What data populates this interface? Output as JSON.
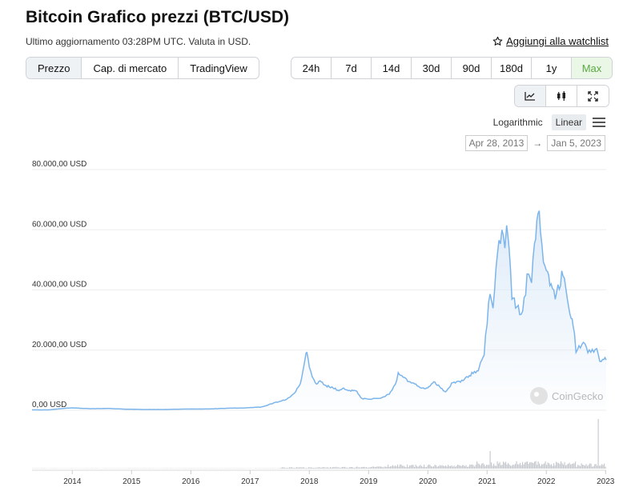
{
  "header": {
    "title": "Bitcoin Grafico prezzi (BTC/USD)",
    "subtitle": "Ultimo aggiornamento 03:28PM UTC. Valuta in USD.",
    "watchlist_label": "Aggiungi alla watchlist"
  },
  "metric_tabs": [
    {
      "label": "Prezzo",
      "active": true
    },
    {
      "label": "Cap. di mercato",
      "active": false
    },
    {
      "label": "TradingView",
      "active": false
    }
  ],
  "range_tabs": [
    {
      "label": "24h"
    },
    {
      "label": "7d"
    },
    {
      "label": "14d"
    },
    {
      "label": "30d"
    },
    {
      "label": "90d"
    },
    {
      "label": "180d"
    },
    {
      "label": "1y"
    },
    {
      "label": "Max",
      "active": true
    }
  ],
  "chart_type_buttons": [
    "line-chart-icon",
    "candlestick-icon",
    "fullscreen-icon"
  ],
  "scale": {
    "logarithmic": "Logarithmic",
    "linear": "Linear",
    "selected": "Linear"
  },
  "date_range": {
    "from": "Apr 28, 2013",
    "arrow": "→",
    "to": "Jan 5, 2023"
  },
  "watermark": "CoinGecko",
  "colors": {
    "line": "#7cb5ec",
    "fill_top": "#dbe9f8",
    "volume": "#c8cbd0",
    "active_green": "#5aa843"
  },
  "chart_data": {
    "type": "area",
    "title": "",
    "xlabel": "",
    "ylabel": "",
    "ylim": [
      0,
      80000
    ],
    "y_ticks": [
      "80.000,00 USD",
      "60.000,00 USD",
      "40.000,00 USD",
      "20.000,00 USD",
      "0,00 USD"
    ],
    "y_tick_values": [
      80000,
      60000,
      40000,
      20000,
      0
    ],
    "x_ticks": [
      "2014",
      "2015",
      "2016",
      "2017",
      "2018",
      "2019",
      "2020",
      "2021",
      "2022",
      "2023"
    ],
    "xlim": [
      2013.32,
      2023.01
    ],
    "grid": true,
    "series": [
      {
        "x": [
          2013.32,
          2013.6,
          2013.9,
          2014.0,
          2014.3,
          2014.6,
          2014.9,
          2015.2,
          2015.6,
          2015.9,
          2016.3,
          2016.6,
          2016.9,
          2017.2,
          2017.4,
          2017.6,
          2017.75,
          2017.85,
          2017.93,
          2017.96,
          2018.0,
          2018.05,
          2018.1,
          2018.2,
          2018.3,
          2018.4,
          2018.5,
          2018.6,
          2018.7,
          2018.8,
          2018.87,
          2018.95,
          2019.0,
          2019.2,
          2019.35,
          2019.45,
          2019.5,
          2019.6,
          2019.7,
          2019.8,
          2019.9,
          2020.0,
          2020.1,
          2020.2,
          2020.3,
          2020.4,
          2020.55,
          2020.7,
          2020.85,
          2020.95,
          2021.0,
          2021.05,
          2021.1,
          2021.15,
          2021.2,
          2021.25,
          2021.3,
          2021.33,
          2021.37,
          2021.42,
          2021.48,
          2021.55,
          2021.6,
          2021.65,
          2021.7,
          2021.75,
          2021.8,
          2021.86,
          2021.9,
          2021.95,
          2022.0,
          2022.08,
          2022.15,
          2022.22,
          2022.28,
          2022.33,
          2022.38,
          2022.42,
          2022.45,
          2022.5,
          2022.55,
          2022.6,
          2022.65,
          2022.7,
          2022.75,
          2022.8,
          2022.85,
          2022.9,
          2022.95,
          2023.01
        ],
        "y": [
          140,
          110,
          700,
          800,
          500,
          600,
          350,
          250,
          250,
          400,
          420,
          650,
          750,
          1100,
          2400,
          3500,
          5500,
          9000,
          17000,
          19500,
          14000,
          11000,
          9000,
          9500,
          8000,
          7500,
          6500,
          7200,
          6500,
          6400,
          4000,
          3800,
          3700,
          4000,
          5500,
          8500,
          12000,
          10500,
          9500,
          8500,
          7300,
          7200,
          9500,
          8000,
          6000,
          8800,
          9500,
          11500,
          13500,
          19000,
          29000,
          40000,
          33000,
          47000,
          57000,
          58000,
          54000,
          63000,
          55000,
          38000,
          35000,
          33000,
          32000,
          40000,
          47000,
          44000,
          55000,
          67000,
          60000,
          50000,
          47000,
          42000,
          38000,
          42000,
          46000,
          40000,
          35000,
          30000,
          29000,
          20000,
          21000,
          22000,
          23000,
          19500,
          20000,
          19500,
          20500,
          16500,
          17000,
          16700
        ]
      }
    ],
    "volume_note": "volume bars below the price chart"
  }
}
